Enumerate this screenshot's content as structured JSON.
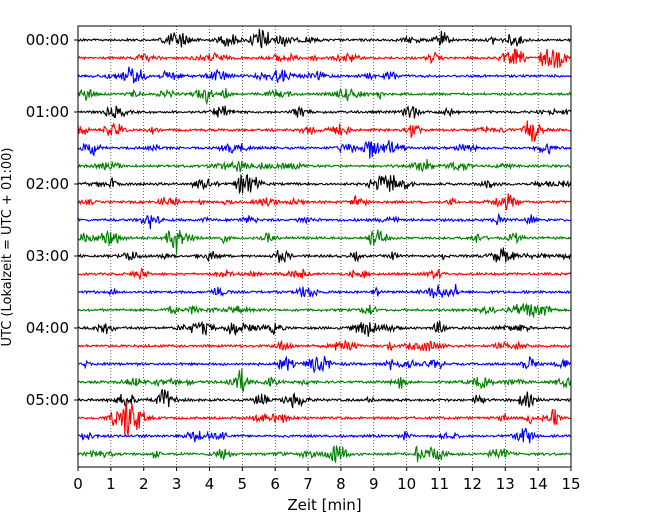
{
  "chart_data": {
    "type": "line",
    "title": "",
    "xlabel": "Zeit  [min]",
    "ylabel": "UTC (Lokalzeit = UTC + 01:00)",
    "xlim": [
      0,
      15
    ],
    "x_ticks": [
      0,
      1,
      2,
      3,
      4,
      5,
      6,
      7,
      8,
      9,
      10,
      11,
      12,
      13,
      14,
      15
    ],
    "x_tick_labels": [
      "0",
      "1",
      "2",
      "3",
      "4",
      "5",
      "6",
      "7",
      "8",
      "9",
      "10",
      "11",
      "12",
      "13",
      "14",
      "15"
    ],
    "y_tick_labels": [
      "00:00",
      "01:00",
      "02:00",
      "03:00",
      "04:00",
      "05:00"
    ],
    "traces_per_hour": 4,
    "trace_minutes": 15,
    "trace_count": 24,
    "grid": "vertical dotted",
    "colors": [
      "#000000",
      "#ff0000",
      "#0000ff",
      "#008000"
    ]
  }
}
